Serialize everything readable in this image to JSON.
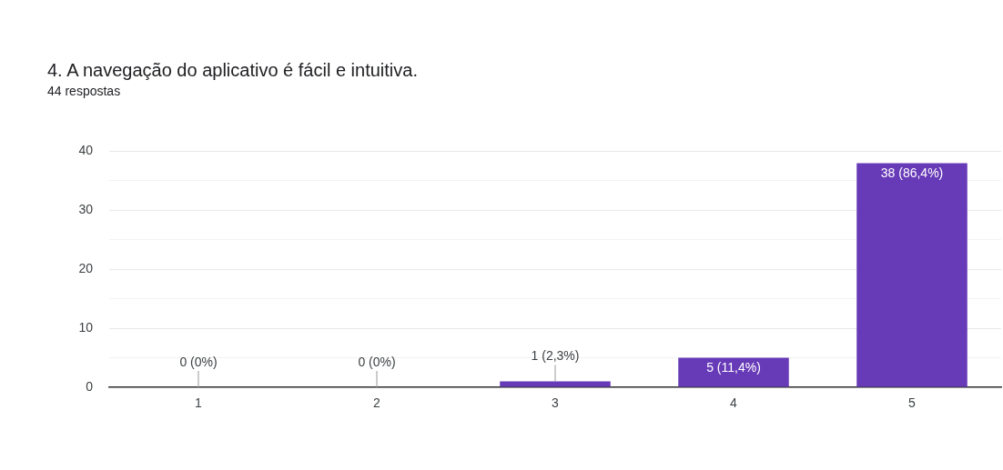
{
  "chart_data": {
    "type": "bar",
    "title": "4. A navegação do aplicativo é fácil e intuitiva.",
    "subtitle": "44 respostas",
    "categories": [
      "1",
      "2",
      "3",
      "4",
      "5"
    ],
    "values": [
      0,
      0,
      1,
      5,
      38
    ],
    "color": "#673ab7",
    "value_labels": [
      "0 (0%)",
      "0 (0%)",
      "1 (2,3%)",
      "5 (11,4%)",
      "38 (86,4%)"
    ],
    "ylim": [
      0,
      40
    ],
    "yticks": [
      0,
      {
        "value": 5,
        "label": null
      },
      10,
      {
        "value": 15,
        "label": null
      },
      20,
      {
        "value": 25,
        "label": null
      },
      30,
      {
        "value": 35,
        "label": null
      },
      40
    ],
    "grid": "y",
    "legend": false
  }
}
